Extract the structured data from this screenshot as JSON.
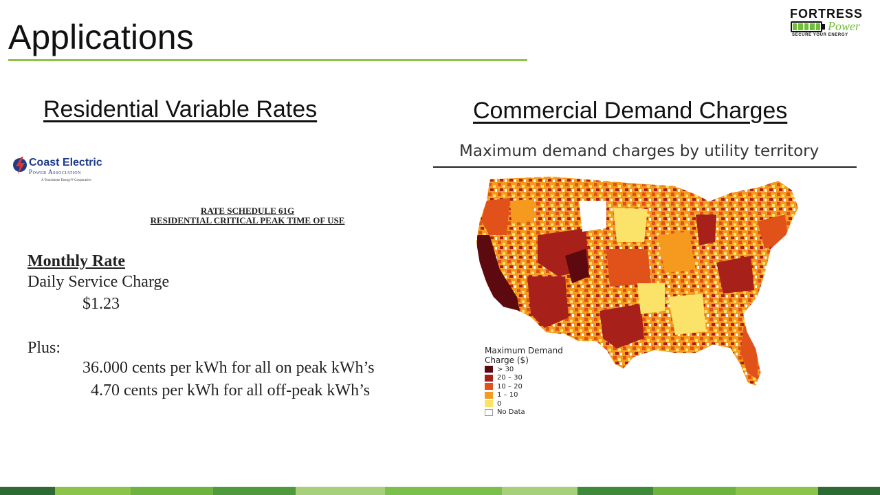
{
  "slide": {
    "title": "Applications"
  },
  "logo": {
    "brand": "FORTRESS",
    "power": "Power",
    "tagline": "SECURE YOUR ENERGY"
  },
  "left": {
    "heading": "Residential Variable Rates",
    "utility_name": "Coast Electric",
    "utility_sub": "Power Association",
    "utility_coop": "A Touchstone Energy® Cooperative",
    "rate_schedule_line1": "RATE SCHEDULE 61G",
    "rate_schedule_line2": "RESIDENTIAL CRITICAL PEAK TIME OF USE",
    "monthly_rate": "Monthly Rate",
    "daily_charge_label": "Daily Service Charge",
    "daily_charge_value": "$1.23",
    "plus": "Plus:",
    "on_peak": "36.000 cents per kWh for all on peak kWh’s",
    "off_peak": "4.70 cents per kWh for all off-peak kWh’s"
  },
  "right": {
    "heading": "Commercial Demand Charges",
    "map_title": "Maximum demand charges by utility territory",
    "legend_title_1": "Maximum Demand",
    "legend_title_2": "Charge ($)",
    "legend": [
      {
        "label": "> 30",
        "color": "#5c0a0f"
      },
      {
        "label": "20 – 30",
        "color": "#a8201a"
      },
      {
        "label": "10 – 20",
        "color": "#e0521a"
      },
      {
        "label": "1 – 10",
        "color": "#f59a1e"
      },
      {
        "label": "0",
        "color": "#fbe36a"
      },
      {
        "label": "No Data",
        "color": "#ffffff"
      }
    ]
  },
  "colors": {
    "accent_green": "#8cc34a",
    "footer": [
      "#2e6b34",
      "#8cc34a",
      "#6fb23f",
      "#4f9a3c",
      "#a8cf7a",
      "#7bbf4d",
      "#a8cf7a",
      "#3f8a3a",
      "#6fb23f",
      "#8cc34a",
      "#2e6b34"
    ]
  }
}
